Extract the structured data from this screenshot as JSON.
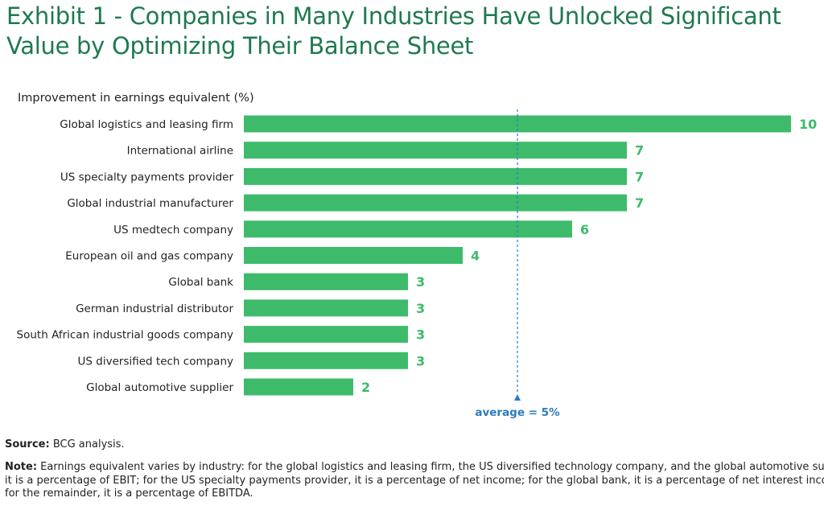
{
  "title": "Exhibit 1 - Companies in Many Industries Have Unlocked Significant Value by Optimizing Their Balance Sheet",
  "colors": {
    "title": "#1e7a4f",
    "bar": "#3dbb6a",
    "value_label": "#3dbb6a",
    "average": "#2c7bbd",
    "text": "#222222"
  },
  "chart_data": {
    "type": "bar",
    "orientation": "horizontal",
    "title": "Exhibit 1 - Companies in Many Industries Have Unlocked Significant Value by Optimizing Their Balance Sheet",
    "xlabel": "Improvement in earnings equivalent (%)",
    "ylabel": "",
    "xlim": [
      0,
      10
    ],
    "grid": false,
    "categories": [
      "Global logistics and leasing firm",
      "International airline",
      "US specialty payments provider",
      "Global industrial manufacturer",
      "US medtech company",
      "European oil and gas company",
      "Global bank",
      "German industrial distributor",
      "South African industrial goods company",
      "US diversified tech company",
      "Global automotive supplier"
    ],
    "values": [
      10,
      7,
      7,
      7,
      6,
      4,
      3,
      3,
      3,
      3,
      2
    ],
    "average": {
      "value": 5,
      "label": "average = 5%"
    }
  },
  "footer": {
    "source_label": "Source:",
    "source_text": " BCG analysis.",
    "note_label": "Note:",
    "note_text": " Earnings equivalent varies by industry: for the global logistics and leasing firm, the US diversified technology company, and the global automotive supplier, it is a percentage of EBIT; for the US specialty payments provider, it is a percentage of net income; for the global bank, it is a percentage of net interest income; for the remainder, it is a percentage of EBITDA."
  }
}
